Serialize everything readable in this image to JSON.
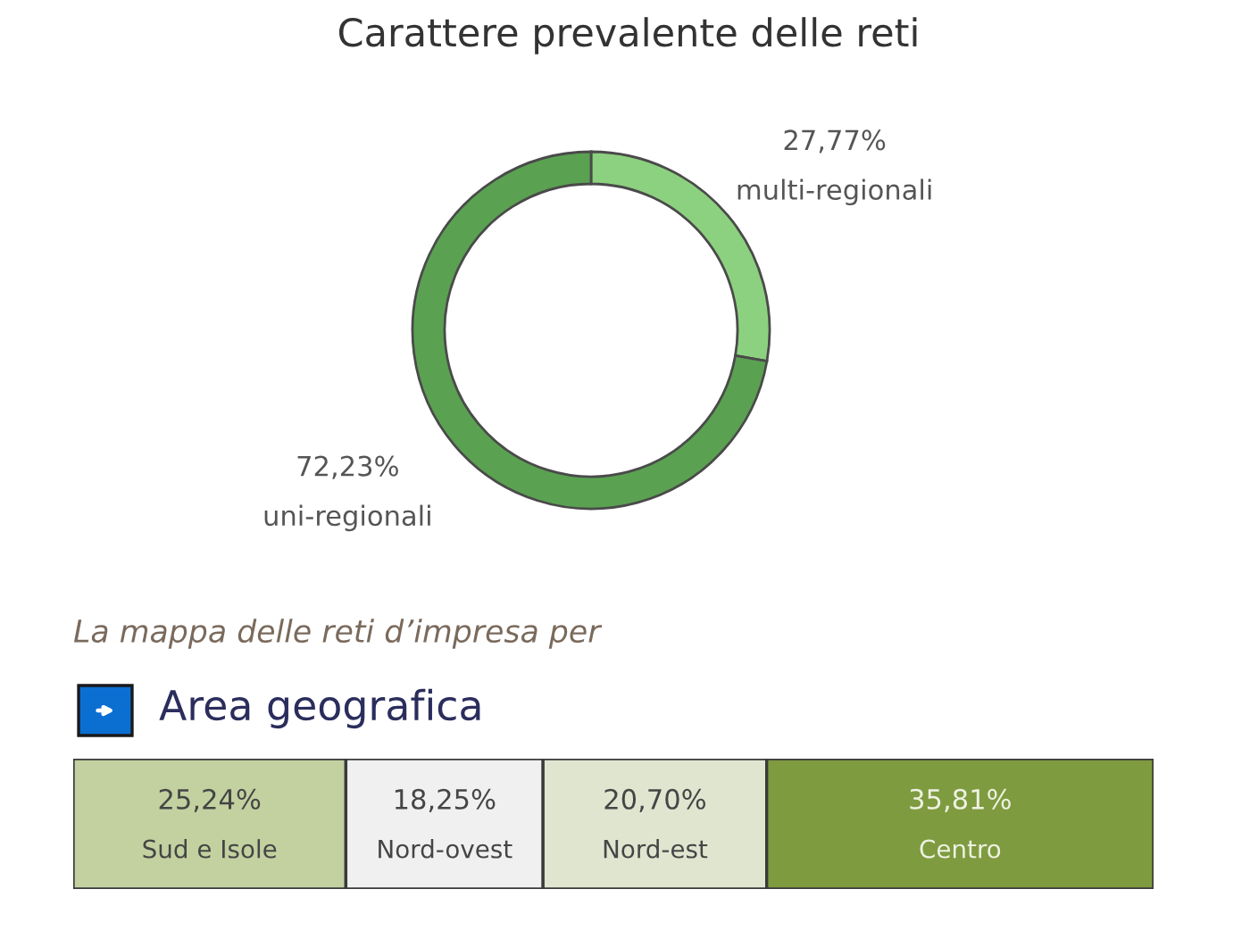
{
  "chart_data": [
    {
      "type": "donut",
      "title": "Carattere prevalente delle reti",
      "categories": [
        "multi-regionali",
        "uni-regionali"
      ],
      "values": [
        27.77,
        72.23
      ],
      "colors": [
        "#8cd17f",
        "#5aa251"
      ],
      "value_labels": [
        "27,77%",
        "72,23%"
      ]
    },
    {
      "type": "bar",
      "orientation": "horizontal",
      "stacked": true,
      "subtitle": "La mappa delle reti d’impresa per",
      "title": "Area geografica",
      "categories": [
        null
      ],
      "xlim": [
        0,
        100
      ],
      "tick_labels": false,
      "series": [
        {
          "name": "Sud e Isole",
          "color": "#c3d1a0",
          "values": [
            25.24
          ],
          "value_labels": [
            "25,24%"
          ]
        },
        {
          "name": "Nord-ovest",
          "color": "#f0f0f0",
          "values": [
            18.25
          ],
          "value_labels": [
            "18,25%"
          ]
        },
        {
          "name": "Nord-est",
          "color": "#e0e5d0",
          "values": [
            20.7
          ],
          "value_labels": [
            "20,70%"
          ]
        },
        {
          "name": "Centro",
          "color": "#7f9b40",
          "values": [
            35.81
          ],
          "value_labels": [
            "35,81%"
          ]
        }
      ]
    }
  ]
}
